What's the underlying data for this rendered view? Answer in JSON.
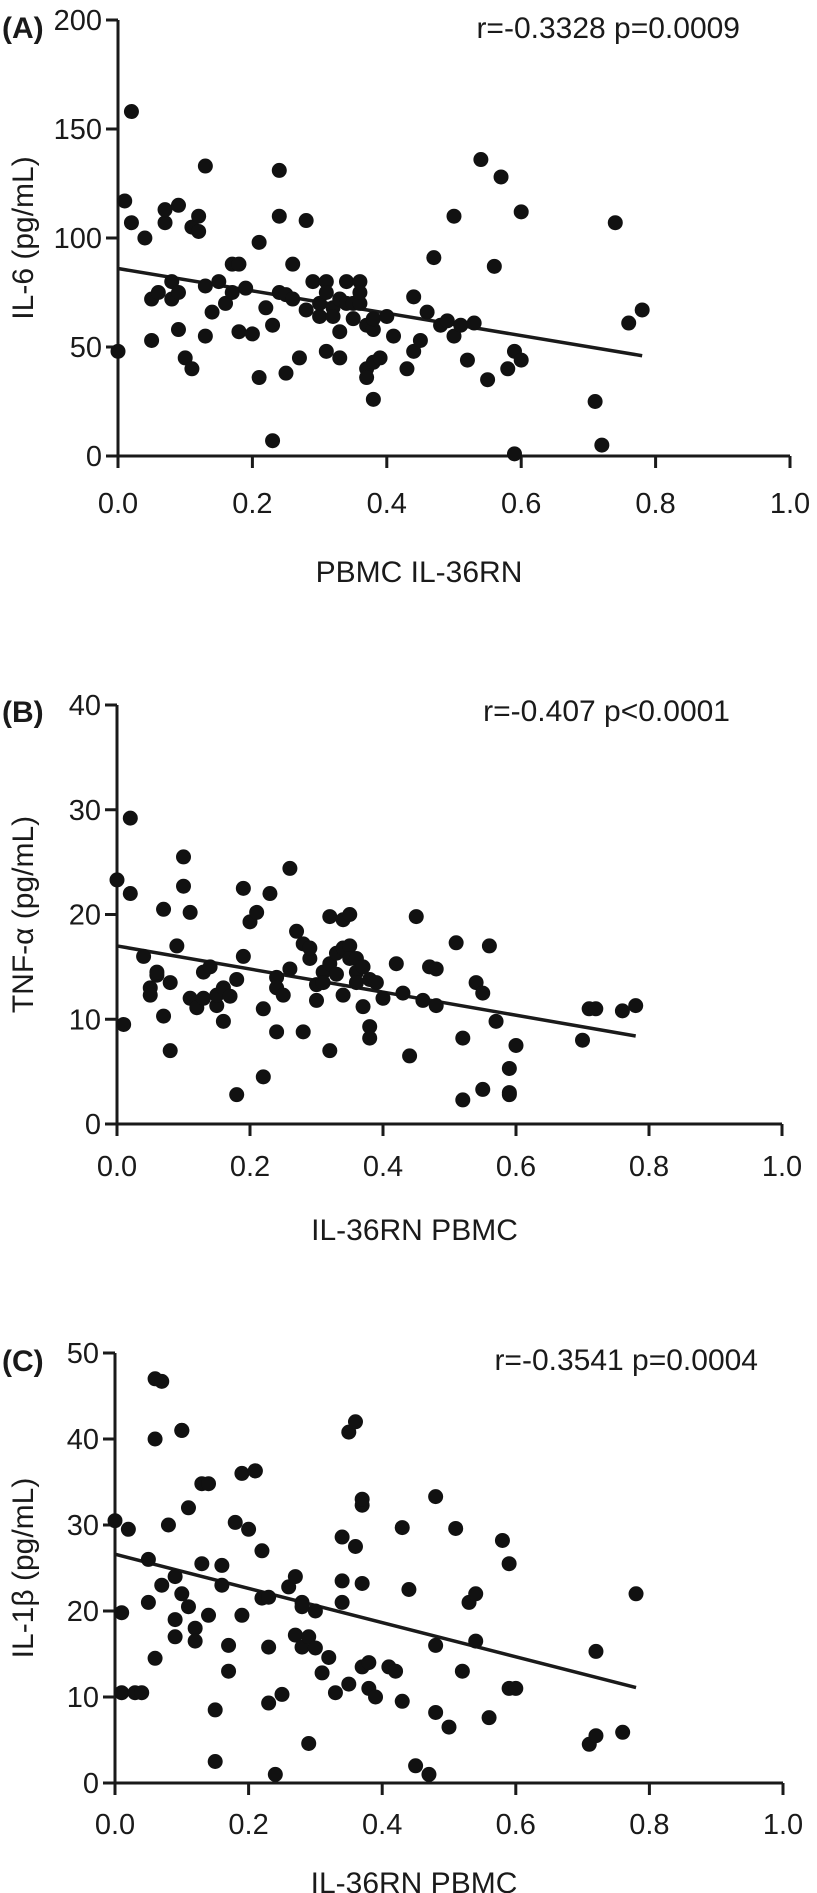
{
  "chart_data": [
    {
      "type": "scatter",
      "panel_label": "(A)",
      "annotation": "r=-0.3328 p=0.0009",
      "xlabel": "PBMC IL-36RN",
      "ylabel": "IL-6 (pg/mL)",
      "xlim": [
        0,
        1.0
      ],
      "ylim": [
        0,
        200
      ],
      "xticks": [
        "0.0",
        "0.2",
        "0.4",
        "0.6",
        "0.8",
        "1.0"
      ],
      "yticks": [
        "0",
        "50",
        "100",
        "150",
        "200"
      ],
      "fit_line": {
        "x": [
          0.0,
          0.78
        ],
        "y": [
          86,
          46
        ]
      },
      "points": [
        [
          0.0,
          48
        ],
        [
          0.01,
          117
        ],
        [
          0.02,
          158
        ],
        [
          0.02,
          107
        ],
        [
          0.04,
          100
        ],
        [
          0.05,
          72
        ],
        [
          0.05,
          53
        ],
        [
          0.06,
          75
        ],
        [
          0.07,
          107
        ],
        [
          0.07,
          113
        ],
        [
          0.08,
          80
        ],
        [
          0.08,
          72
        ],
        [
          0.09,
          115
        ],
        [
          0.09,
          58
        ],
        [
          0.09,
          75
        ],
        [
          0.1,
          45
        ],
        [
          0.11,
          40
        ],
        [
          0.11,
          105
        ],
        [
          0.12,
          110
        ],
        [
          0.12,
          103
        ],
        [
          0.13,
          133
        ],
        [
          0.13,
          78
        ],
        [
          0.13,
          55
        ],
        [
          0.14,
          66
        ],
        [
          0.15,
          80
        ],
        [
          0.16,
          70
        ],
        [
          0.17,
          88
        ],
        [
          0.17,
          75
        ],
        [
          0.18,
          88
        ],
        [
          0.18,
          57
        ],
        [
          0.19,
          77
        ],
        [
          0.2,
          56
        ],
        [
          0.21,
          36
        ],
        [
          0.21,
          98
        ],
        [
          0.22,
          68
        ],
        [
          0.23,
          7
        ],
        [
          0.23,
          60
        ],
        [
          0.24,
          75
        ],
        [
          0.24,
          110
        ],
        [
          0.24,
          131
        ],
        [
          0.25,
          38
        ],
        [
          0.25,
          74
        ],
        [
          0.26,
          88
        ],
        [
          0.26,
          72
        ],
        [
          0.27,
          45
        ],
        [
          0.28,
          67
        ],
        [
          0.28,
          108
        ],
        [
          0.29,
          80
        ],
        [
          0.3,
          64
        ],
        [
          0.3,
          70
        ],
        [
          0.31,
          80
        ],
        [
          0.31,
          75
        ],
        [
          0.31,
          48
        ],
        [
          0.32,
          68
        ],
        [
          0.32,
          64
        ],
        [
          0.33,
          57
        ],
        [
          0.33,
          45
        ],
        [
          0.33,
          72
        ],
        [
          0.34,
          80
        ],
        [
          0.34,
          70
        ],
        [
          0.35,
          70
        ],
        [
          0.35,
          63
        ],
        [
          0.36,
          80
        ],
        [
          0.36,
          70
        ],
        [
          0.36,
          75
        ],
        [
          0.37,
          60
        ],
        [
          0.37,
          40
        ],
        [
          0.37,
          36
        ],
        [
          0.38,
          58
        ],
        [
          0.38,
          63
        ],
        [
          0.38,
          26
        ],
        [
          0.38,
          43
        ],
        [
          0.39,
          45
        ],
        [
          0.4,
          64
        ],
        [
          0.41,
          55
        ],
        [
          0.43,
          40
        ],
        [
          0.44,
          48
        ],
        [
          0.44,
          73
        ],
        [
          0.45,
          53
        ],
        [
          0.46,
          66
        ],
        [
          0.47,
          91
        ],
        [
          0.48,
          60
        ],
        [
          0.49,
          62
        ],
        [
          0.5,
          110
        ],
        [
          0.5,
          55
        ],
        [
          0.51,
          60
        ],
        [
          0.52,
          44
        ],
        [
          0.53,
          61
        ],
        [
          0.54,
          136
        ],
        [
          0.55,
          35
        ],
        [
          0.56,
          87
        ],
        [
          0.57,
          128
        ],
        [
          0.58,
          40
        ],
        [
          0.59,
          48
        ],
        [
          0.59,
          1
        ],
        [
          0.6,
          44
        ],
        [
          0.6,
          112
        ],
        [
          0.71,
          25
        ],
        [
          0.72,
          5
        ],
        [
          0.74,
          107
        ],
        [
          0.76,
          61
        ],
        [
          0.78,
          67
        ]
      ]
    },
    {
      "type": "scatter",
      "panel_label": "(B)",
      "annotation": "r=-0.407 p<0.0001",
      "xlabel": "IL-36RN PBMC",
      "ylabel": "TNF-α (pg/mL)",
      "xlim": [
        0,
        1.0
      ],
      "ylim": [
        0,
        40
      ],
      "xticks": [
        "0.0",
        "0.2",
        "0.4",
        "0.6",
        "0.8",
        "1.0"
      ],
      "yticks": [
        "0",
        "10",
        "20",
        "30",
        "40"
      ],
      "fit_line": {
        "x": [
          0.0,
          0.78
        ],
        "y": [
          17.0,
          8.4
        ]
      },
      "points": [
        [
          0.0,
          23.3
        ],
        [
          0.01,
          9.5
        ],
        [
          0.02,
          29.2
        ],
        [
          0.02,
          22
        ],
        [
          0.04,
          16
        ],
        [
          0.05,
          13
        ],
        [
          0.05,
          12.3
        ],
        [
          0.06,
          14.2
        ],
        [
          0.06,
          14.5
        ],
        [
          0.07,
          20.5
        ],
        [
          0.07,
          10.3
        ],
        [
          0.08,
          7
        ],
        [
          0.08,
          13.5
        ],
        [
          0.09,
          17
        ],
        [
          0.1,
          25.5
        ],
        [
          0.1,
          22.7
        ],
        [
          0.11,
          20.2
        ],
        [
          0.11,
          12
        ],
        [
          0.12,
          11.5
        ],
        [
          0.12,
          11.1
        ],
        [
          0.13,
          14.5
        ],
        [
          0.13,
          12
        ],
        [
          0.14,
          15
        ],
        [
          0.15,
          11.3
        ],
        [
          0.15,
          12.3
        ],
        [
          0.16,
          9.8
        ],
        [
          0.16,
          13
        ],
        [
          0.17,
          12.2
        ],
        [
          0.18,
          13.8
        ],
        [
          0.18,
          2.8
        ],
        [
          0.19,
          16
        ],
        [
          0.19,
          22.5
        ],
        [
          0.2,
          19.3
        ],
        [
          0.21,
          20.2
        ],
        [
          0.22,
          11
        ],
        [
          0.22,
          4.5
        ],
        [
          0.23,
          22
        ],
        [
          0.24,
          14
        ],
        [
          0.24,
          13
        ],
        [
          0.24,
          8.8
        ],
        [
          0.25,
          12.3
        ],
        [
          0.26,
          24.4
        ],
        [
          0.26,
          14.8
        ],
        [
          0.27,
          18.4
        ],
        [
          0.28,
          17.2
        ],
        [
          0.28,
          8.8
        ],
        [
          0.29,
          15.8
        ],
        [
          0.29,
          16.8
        ],
        [
          0.3,
          13.3
        ],
        [
          0.3,
          11.8
        ],
        [
          0.31,
          14.5
        ],
        [
          0.31,
          13.5
        ],
        [
          0.32,
          19.8
        ],
        [
          0.32,
          15.3
        ],
        [
          0.32,
          7
        ],
        [
          0.33,
          16.3
        ],
        [
          0.33,
          14.3
        ],
        [
          0.34,
          19.5
        ],
        [
          0.34,
          16.8
        ],
        [
          0.34,
          12.3
        ],
        [
          0.35,
          17
        ],
        [
          0.35,
          20
        ],
        [
          0.35,
          15.8
        ],
        [
          0.36,
          14.5
        ],
        [
          0.36,
          13.5
        ],
        [
          0.36,
          15.8
        ],
        [
          0.37,
          11.2
        ],
        [
          0.37,
          15
        ],
        [
          0.38,
          9.3
        ],
        [
          0.38,
          13.8
        ],
        [
          0.38,
          8.2
        ],
        [
          0.39,
          13.5
        ],
        [
          0.4,
          12
        ],
        [
          0.42,
          15.3
        ],
        [
          0.43,
          12.5
        ],
        [
          0.44,
          6.5
        ],
        [
          0.45,
          19.8
        ],
        [
          0.46,
          11.8
        ],
        [
          0.47,
          15
        ],
        [
          0.48,
          14.8
        ],
        [
          0.48,
          11.3
        ],
        [
          0.51,
          17.3
        ],
        [
          0.52,
          8.2
        ],
        [
          0.52,
          2.3
        ],
        [
          0.54,
          13.5
        ],
        [
          0.55,
          12.5
        ],
        [
          0.55,
          3.3
        ],
        [
          0.56,
          17
        ],
        [
          0.57,
          9.8
        ],
        [
          0.59,
          5.3
        ],
        [
          0.59,
          2.8
        ],
        [
          0.59,
          3
        ],
        [
          0.6,
          7.5
        ],
        [
          0.7,
          8
        ],
        [
          0.71,
          11
        ],
        [
          0.72,
          11
        ],
        [
          0.76,
          10.8
        ],
        [
          0.78,
          11.3
        ]
      ]
    },
    {
      "type": "scatter",
      "panel_label": "(C)",
      "annotation": "r=-0.3541 p=0.0004",
      "xlabel": "IL-36RN PBMC",
      "ylabel": "IL-1β (pg/mL)",
      "xlim": [
        0,
        1.0
      ],
      "ylim": [
        0,
        50
      ],
      "xticks": [
        "0.0",
        "0.2",
        "0.4",
        "0.6",
        "0.8",
        "1.0"
      ],
      "yticks": [
        "0",
        "10",
        "20",
        "30",
        "40",
        "50"
      ],
      "fit_line": {
        "x": [
          0.0,
          0.78
        ],
        "y": [
          26.6,
          11.1
        ]
      },
      "points": [
        [
          0.0,
          30.5
        ],
        [
          0.01,
          10.5
        ],
        [
          0.01,
          19.8
        ],
        [
          0.02,
          29.5
        ],
        [
          0.03,
          10.5
        ],
        [
          0.04,
          10.5
        ],
        [
          0.05,
          26
        ],
        [
          0.05,
          21
        ],
        [
          0.06,
          47
        ],
        [
          0.06,
          40
        ],
        [
          0.06,
          14.5
        ],
        [
          0.07,
          23
        ],
        [
          0.07,
          46.7
        ],
        [
          0.08,
          30
        ],
        [
          0.09,
          24
        ],
        [
          0.09,
          19
        ],
        [
          0.09,
          17
        ],
        [
          0.1,
          41
        ],
        [
          0.1,
          41
        ],
        [
          0.1,
          22
        ],
        [
          0.11,
          32
        ],
        [
          0.11,
          20.5
        ],
        [
          0.12,
          18
        ],
        [
          0.12,
          16.5
        ],
        [
          0.13,
          34.8
        ],
        [
          0.13,
          25.5
        ],
        [
          0.14,
          34.8
        ],
        [
          0.14,
          19.5
        ],
        [
          0.15,
          8.5
        ],
        [
          0.15,
          2.5
        ],
        [
          0.16,
          23
        ],
        [
          0.16,
          25.3
        ],
        [
          0.17,
          16
        ],
        [
          0.17,
          13
        ],
        [
          0.18,
          30.3
        ],
        [
          0.19,
          36
        ],
        [
          0.19,
          19.5
        ],
        [
          0.2,
          29.5
        ],
        [
          0.21,
          36.3
        ],
        [
          0.21,
          36.3
        ],
        [
          0.22,
          21.5
        ],
        [
          0.22,
          27
        ],
        [
          0.23,
          9.3
        ],
        [
          0.23,
          15.8
        ],
        [
          0.23,
          21.6
        ],
        [
          0.24,
          1
        ],
        [
          0.25,
          10.3
        ],
        [
          0.26,
          22.8
        ],
        [
          0.27,
          24
        ],
        [
          0.27,
          17.2
        ],
        [
          0.28,
          15.8
        ],
        [
          0.28,
          21
        ],
        [
          0.28,
          20.5
        ],
        [
          0.29,
          17
        ],
        [
          0.29,
          4.6
        ],
        [
          0.3,
          20
        ],
        [
          0.3,
          15.7
        ],
        [
          0.31,
          12.8
        ],
        [
          0.32,
          14.6
        ],
        [
          0.33,
          10.5
        ],
        [
          0.34,
          23.5
        ],
        [
          0.34,
          28.6
        ],
        [
          0.34,
          21
        ],
        [
          0.35,
          40.8
        ],
        [
          0.35,
          11.5
        ],
        [
          0.36,
          42
        ],
        [
          0.36,
          27.5
        ],
        [
          0.37,
          23.2
        ],
        [
          0.37,
          32.3
        ],
        [
          0.37,
          33
        ],
        [
          0.37,
          13.5
        ],
        [
          0.38,
          11
        ],
        [
          0.38,
          14
        ],
        [
          0.39,
          10
        ],
        [
          0.41,
          13.5
        ],
        [
          0.42,
          13
        ],
        [
          0.43,
          9.5
        ],
        [
          0.43,
          29.7
        ],
        [
          0.44,
          22.5
        ],
        [
          0.45,
          2
        ],
        [
          0.47,
          1
        ],
        [
          0.48,
          33.3
        ],
        [
          0.48,
          16
        ],
        [
          0.48,
          8.2
        ],
        [
          0.5,
          6.5
        ],
        [
          0.51,
          29.6
        ],
        [
          0.52,
          13
        ],
        [
          0.53,
          21
        ],
        [
          0.54,
          22
        ],
        [
          0.54,
          16.5
        ],
        [
          0.56,
          7.6
        ],
        [
          0.58,
          28.2
        ],
        [
          0.59,
          25.5
        ],
        [
          0.59,
          11
        ],
        [
          0.6,
          11
        ],
        [
          0.71,
          4.5
        ],
        [
          0.72,
          5.5
        ],
        [
          0.72,
          15.3
        ],
        [
          0.76,
          5.9
        ],
        [
          0.78,
          22
        ]
      ]
    }
  ]
}
